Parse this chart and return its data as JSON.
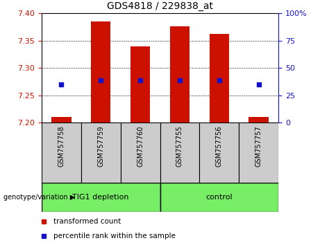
{
  "title": "GDS4818 / 229838_at",
  "samples": [
    "GSM757758",
    "GSM757759",
    "GSM757760",
    "GSM757755",
    "GSM757756",
    "GSM757757"
  ],
  "transformed_counts": [
    7.21,
    7.385,
    7.34,
    7.376,
    7.362,
    7.21
  ],
  "percentile_ranks": [
    7.27,
    7.277,
    7.277,
    7.277,
    7.277,
    7.27
  ],
  "y_min": 7.2,
  "y_max": 7.4,
  "y_ticks_left": [
    7.2,
    7.25,
    7.3,
    7.35,
    7.4
  ],
  "y_ticks_right": [
    0,
    25,
    50,
    75,
    100
  ],
  "bar_color": "#cc1100",
  "dot_color": "#1111cc",
  "group1_label": "TIG1 depletion",
  "group2_label": "control",
  "group_bg_color": "#77ee66",
  "sample_box_color": "#cccccc",
  "tick_color_left": "#cc1100",
  "tick_color_right": "#1111cc",
  "bar_base": 7.2,
  "bar_width": 0.5,
  "plot_bg": "#ffffff",
  "n_group1": 3,
  "n_group2": 3
}
